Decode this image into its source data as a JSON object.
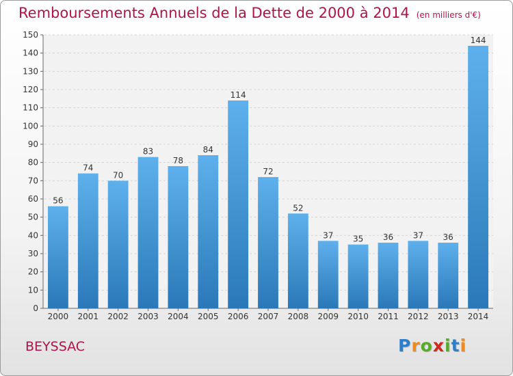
{
  "header": {
    "title": "Remboursements Annuels de la Dette de 2000 à 2014",
    "subtitle": "(en milliers d'€)"
  },
  "footer": {
    "commune": "BEYSSAC",
    "logo": {
      "letters": [
        "P",
        "r",
        "o",
        "x",
        "i",
        "t",
        "i"
      ],
      "colors": [
        "#2f7fc8",
        "#f08a1c",
        "#5aaa2a",
        "#d0281c",
        "#5aaa2a",
        "#2f7fc8",
        "#f08a1c"
      ]
    }
  },
  "colors": {
    "bar_top": "#5eb0ec",
    "bar_bottom": "#2a78b8",
    "title": "#b0134a"
  },
  "chart_data": {
    "type": "bar",
    "title": "Remboursements Annuels de la Dette de 2000 à 2014",
    "subtitle": "(en milliers d'€)",
    "categories": [
      "2000",
      "2001",
      "2002",
      "2003",
      "2004",
      "2005",
      "2006",
      "2007",
      "2008",
      "2009",
      "2010",
      "2011",
      "2012",
      "2013",
      "2014"
    ],
    "values": [
      56,
      74,
      70,
      83,
      78,
      84,
      114,
      72,
      52,
      37,
      35,
      36,
      37,
      36,
      144
    ],
    "ylim": [
      0,
      150
    ],
    "yticks": [
      0,
      10,
      20,
      30,
      40,
      50,
      60,
      70,
      80,
      90,
      100,
      110,
      120,
      130,
      140,
      150
    ],
    "grid": true,
    "data_labels": true
  }
}
